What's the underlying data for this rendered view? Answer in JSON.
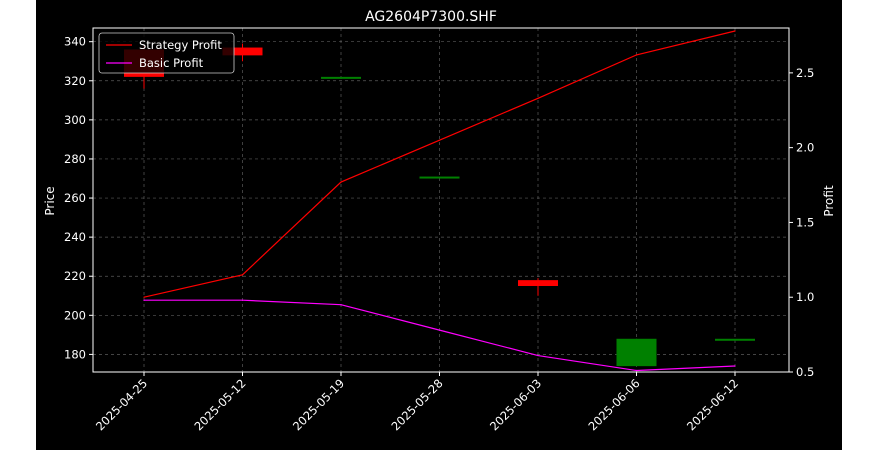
{
  "chart_data": {
    "type": "candlestick+line",
    "title": "AG2604P7300.SHF",
    "ylabel_left": "Price",
    "ylabel_right": "Profit",
    "ylim_left": [
      171,
      347
    ],
    "ylim_right": [
      0.5,
      2.8
    ],
    "left_ticks": [
      "180",
      "200",
      "220",
      "240",
      "260",
      "280",
      "300",
      "320",
      "340"
    ],
    "right_ticks": [
      "0.5",
      "1.0",
      "1.5",
      "2.0",
      "2.5"
    ],
    "categories": [
      "2025-04-25",
      "2025-05-12",
      "2025-05-19",
      "2025-05-28",
      "2025-06-03",
      "2025-06-06",
      "2025-06-12"
    ],
    "candles": [
      {
        "date": "2025-04-25",
        "open": 336,
        "high": 338,
        "low": 316,
        "close": 322
      },
      {
        "date": "2025-05-12",
        "open": 337,
        "high": 339,
        "low": 330,
        "close": 333
      },
      {
        "date": "2025-05-19",
        "open": 322,
        "high": 322,
        "low": 322,
        "close": 322
      },
      {
        "date": "2025-05-28",
        "open": 271,
        "high": 271,
        "low": 271,
        "close": 271
      },
      {
        "date": "2025-06-03",
        "open": 218,
        "high": 219,
        "low": 210,
        "close": 215
      },
      {
        "date": "2025-06-06",
        "open": 174,
        "high": 188,
        "low": 174,
        "close": 188
      },
      {
        "date": "2025-06-12",
        "open": 188,
        "high": 188,
        "low": 188,
        "close": 188
      }
    ],
    "series": [
      {
        "name": "Strategy Profit",
        "color": "#ff0000",
        "values": [
          1.0,
          1.15,
          1.77,
          2.05,
          2.33,
          2.62,
          2.78
        ]
      },
      {
        "name": "Basic Profit",
        "color": "#ff00ff",
        "values": [
          0.98,
          0.98,
          0.95,
          0.78,
          0.61,
          0.51,
          0.54
        ]
      }
    ],
    "colors": {
      "background": "#000000",
      "up": "#008000",
      "down": "#ff0000",
      "grid": "#808080",
      "text": "#ffffff"
    },
    "legend_position": "top-left",
    "grid": true
  }
}
